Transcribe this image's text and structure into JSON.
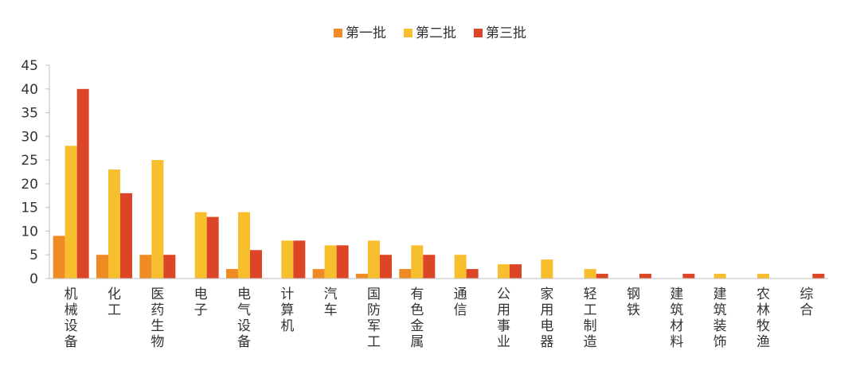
{
  "chart_data": {
    "type": "bar",
    "title": "",
    "xlabel": "",
    "ylabel": "",
    "ylim": [
      0,
      45
    ],
    "yticks": [
      0,
      5,
      10,
      15,
      20,
      25,
      30,
      35,
      40,
      45
    ],
    "grid": false,
    "legend_position": "top-center",
    "categories": [
      "机械设备",
      "化工",
      "医药生物",
      "电子",
      "电气设备",
      "计算机",
      "汽车",
      "国防军工",
      "有色金属",
      "通信",
      "公用事业",
      "家用电器",
      "轻工制造",
      "钢铁",
      "建筑材料",
      "建筑装饰",
      "农林牧渔",
      "综合"
    ],
    "series": [
      {
        "name": "第一批",
        "color": "#F08A22",
        "values": [
          9,
          5,
          5,
          0,
          2,
          0,
          2,
          1,
          2,
          0,
          0,
          0,
          0,
          0,
          0,
          0,
          0,
          0
        ]
      },
      {
        "name": "第二批",
        "color": "#F7BE2E",
        "values": [
          28,
          23,
          25,
          14,
          14,
          8,
          7,
          8,
          7,
          5,
          3,
          4,
          2,
          0,
          0,
          1,
          1,
          0
        ]
      },
      {
        "name": "第三批",
        "color": "#DC4627",
        "values": [
          40,
          18,
          5,
          13,
          6,
          8,
          7,
          5,
          5,
          2,
          3,
          0,
          1,
          1,
          1,
          0,
          0,
          1
        ]
      }
    ]
  }
}
